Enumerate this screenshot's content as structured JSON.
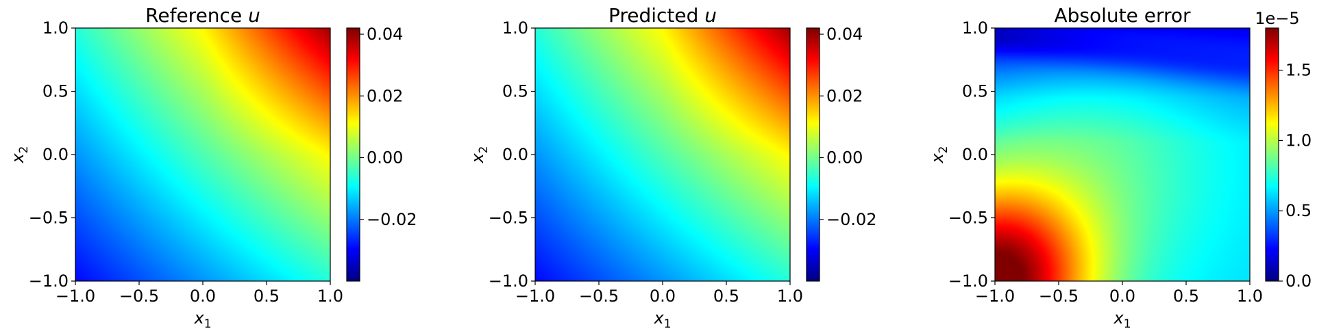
{
  "chart_data": [
    {
      "type": "heatmap",
      "title": "Reference u",
      "title_parts": {
        "text": "Reference ",
        "var": "u"
      },
      "xlabel": {
        "base": "x",
        "sub": "1"
      },
      "ylabel": {
        "base": "x",
        "sub": "2"
      },
      "xlim": [
        -1.0,
        1.0
      ],
      "ylim": [
        -1.0,
        1.0
      ],
      "xticks": [
        "−1.0",
        "−0.5",
        "0.0",
        "0.5",
        "1.0"
      ],
      "yticks": [
        "−1.0",
        "−0.5",
        "0.0",
        "0.5",
        "1.0"
      ],
      "colormap": "jet",
      "colorbar": {
        "range": [
          -0.04,
          0.042
        ],
        "ticks": [
          {
            "value": -0.02,
            "label": "−0.02"
          },
          {
            "value": 0.0,
            "label": "0.00"
          },
          {
            "value": 0.02,
            "label": "0.02"
          },
          {
            "value": 0.04,
            "label": "0.04"
          }
        ],
        "offset_label": ""
      },
      "field": "reference",
      "grid": false
    },
    {
      "type": "heatmap",
      "title": "Predicted u",
      "title_parts": {
        "text": "Predicted ",
        "var": "u"
      },
      "xlabel": {
        "base": "x",
        "sub": "1"
      },
      "ylabel": {
        "base": "x",
        "sub": "2"
      },
      "xlim": [
        -1.0,
        1.0
      ],
      "ylim": [
        -1.0,
        1.0
      ],
      "xticks": [
        "−1.0",
        "−0.5",
        "0.0",
        "0.5",
        "1.0"
      ],
      "yticks": [
        "−1.0",
        "−0.5",
        "0.0",
        "0.5",
        "1.0"
      ],
      "colormap": "jet",
      "colorbar": {
        "range": [
          -0.04,
          0.042
        ],
        "ticks": [
          {
            "value": -0.02,
            "label": "−0.02"
          },
          {
            "value": 0.0,
            "label": "0.00"
          },
          {
            "value": 0.02,
            "label": "0.02"
          },
          {
            "value": 0.04,
            "label": "0.04"
          }
        ],
        "offset_label": ""
      },
      "field": "predicted",
      "grid": false
    },
    {
      "type": "heatmap",
      "title": "Absolute error",
      "title_parts": {
        "text": "Absolute error",
        "var": ""
      },
      "xlabel": {
        "base": "x",
        "sub": "1"
      },
      "ylabel": {
        "base": "x",
        "sub": "2"
      },
      "xlim": [
        -1.0,
        1.0
      ],
      "ylim": [
        -1.0,
        1.0
      ],
      "xticks": [
        "−1.0",
        "−0.5",
        "0.0",
        "0.5",
        "1.0"
      ],
      "yticks": [
        "−1.0",
        "−0.5",
        "0.0",
        "0.5",
        "1.0"
      ],
      "colormap": "jet",
      "colorbar": {
        "range": [
          0.0,
          1.8
        ],
        "ticks": [
          {
            "value": 0.0,
            "label": "0.0"
          },
          {
            "value": 0.5,
            "label": "0.5"
          },
          {
            "value": 1.0,
            "label": "1.0"
          },
          {
            "value": 1.5,
            "label": "1.5"
          }
        ],
        "offset_label": "1e−5"
      },
      "field": "error",
      "grid": false
    }
  ]
}
